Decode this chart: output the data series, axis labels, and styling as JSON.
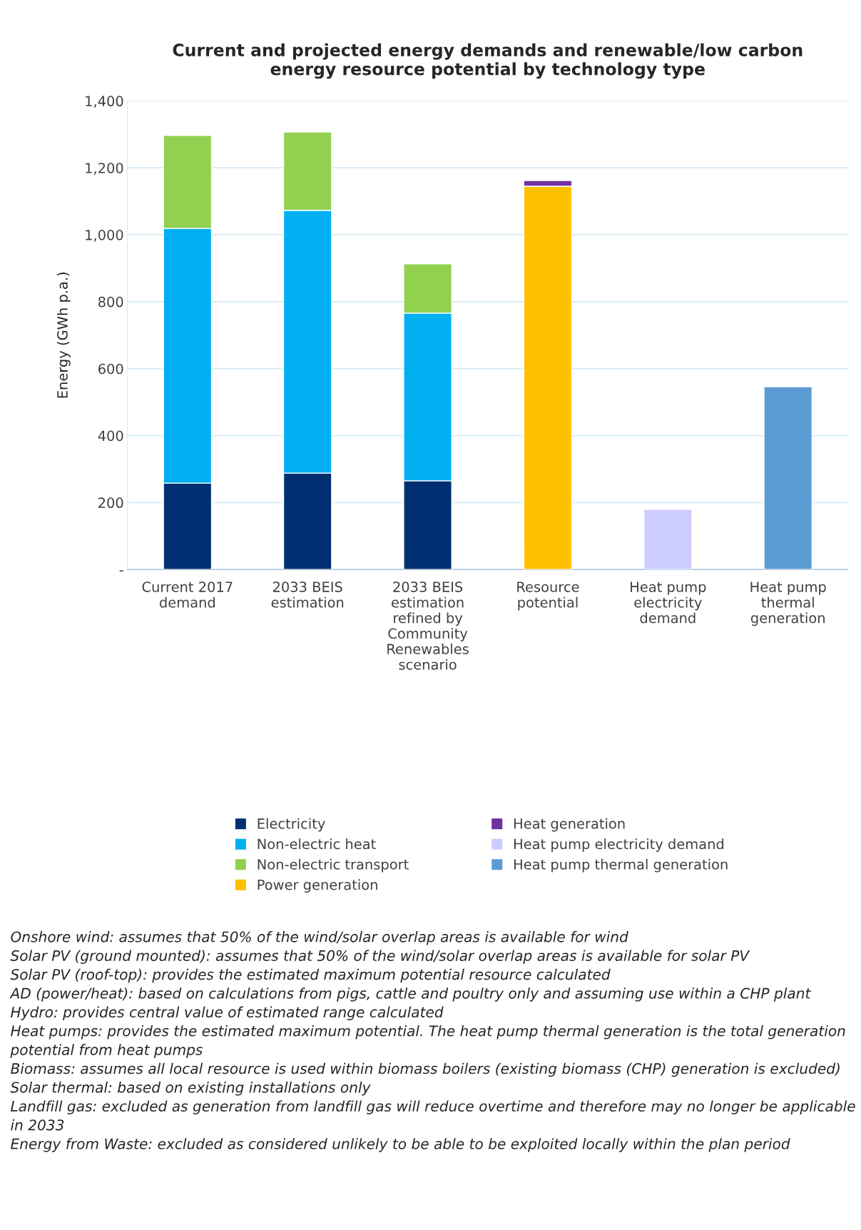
{
  "chart_data": {
    "type": "bar",
    "stacked": true,
    "title": "Current and projected energy demands and renewable/low carbon\nenergy resource potential by technology type",
    "ylabel": "Energy (GWh p.a.)",
    "categories": [
      "Current 2017\ndemand",
      "2033 BEIS\nestimation",
      "2033 BEIS\nestimation\nrefined by\nCommunity\nRenewables\nscenario",
      "Resource\npotential",
      "Heat pump\nelectricity\ndemand",
      "Heat pump\nthermal\ngeneration"
    ],
    "series": [
      {
        "name": "Electricity",
        "color": "#003071",
        "values": [
          258,
          288,
          265,
          null,
          null,
          null
        ]
      },
      {
        "name": "Non-electric heat",
        "color": "#00b0f0",
        "values": [
          761,
          785,
          501,
          null,
          null,
          null
        ]
      },
      {
        "name": "Non-electric transport",
        "color": "#92d050",
        "values": [
          278,
          234,
          147,
          null,
          null,
          null
        ]
      },
      {
        "name": "Power generation",
        "color": "#ffc000",
        "values": [
          null,
          null,
          null,
          1145,
          null,
          null
        ]
      },
      {
        "name": "Heat generation",
        "color": "#7030a0",
        "values": [
          null,
          null,
          null,
          17,
          null,
          null
        ]
      },
      {
        "name": "Heat pump electricity demand",
        "color": "#ccccff",
        "values": [
          null,
          null,
          null,
          null,
          180,
          null
        ]
      },
      {
        "name": "Heat pump thermal generation",
        "color": "#5b9bd5",
        "values": [
          null,
          null,
          null,
          null,
          null,
          546
        ]
      }
    ],
    "ylim": [
      0,
      1400
    ],
    "yticks": [
      {
        "value": 0,
        "label": "-"
      },
      {
        "value": 200,
        "label": "200"
      },
      {
        "value": 400,
        "label": "400"
      },
      {
        "value": 600,
        "label": "600"
      },
      {
        "value": 800,
        "label": "800"
      },
      {
        "value": 1000,
        "label": "1,000"
      },
      {
        "value": 1200,
        "label": "1,200"
      },
      {
        "value": 1400,
        "label": "1,400"
      }
    ],
    "grid": "y",
    "legend": "bottom",
    "annotations": [
      "Onshore wind: assumes that 50% of the wind/solar overlap areas is available for wind",
      "Solar PV (ground mounted): assumes that 50% of the wind/solar overlap areas is available for solar PV",
      "Solar PV (roof-top): provides the estimated maximum potential resource calculated",
      "AD (power/heat): based on calculations from pigs, cattle and poultry only and assuming use within a CHP plant",
      "Hydro: provides central value of estimated range calculated",
      "Heat pumps: provides the estimated maximum potential. The heat pump thermal generation is the total generation potential from heat pumps",
      "Biomass: assumes all local resource is used within biomass boilers (existing biomass (CHP) generation is excluded)",
      "Solar thermal: based on existing installations only",
      "Landfill gas: excluded as generation from landfill gas will reduce overtime and therefore may no longer be applicable in 2033",
      "Energy from Waste: excluded as considered unlikely to be able to be exploited locally within the plan period"
    ]
  }
}
